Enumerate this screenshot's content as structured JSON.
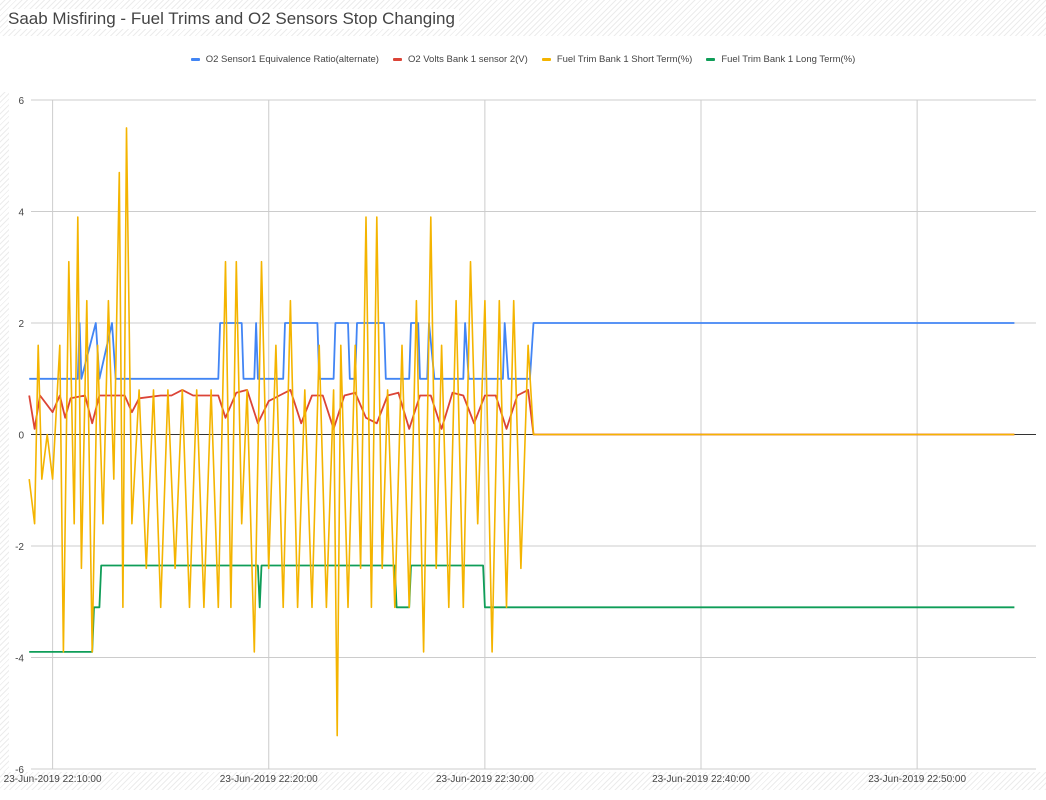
{
  "chart_data": {
    "type": "line",
    "title": "Saab Misfiring - Fuel Trims and O2 Sensors Stop Changing",
    "xlabel": "",
    "ylabel": "",
    "legend_position": "top",
    "grid": true,
    "xlim": [
      "23-Jun-2019 22:09:00",
      "23-Jun-2019 22:55:30"
    ],
    "ylim": [
      -6,
      6
    ],
    "yticks": [
      "6",
      "4",
      "2",
      "0",
      "-2",
      "-4",
      "-6"
    ],
    "xticks": [
      "23-Jun-2019 22:10:00",
      "23-Jun-2019 22:20:00",
      "23-Jun-2019 22:30:00",
      "23-Jun-2019 22:40:00",
      "23-Jun-2019 22:50:00"
    ],
    "series": [
      {
        "name": "O2 Sensor1 Equivalence Ratio(alternate)",
        "color": "#4285f4",
        "points": [
          [
            "22:08:55",
            1.0
          ],
          [
            "22:11:10",
            1.0
          ],
          [
            "22:11:15",
            2.0
          ],
          [
            "22:11:20",
            1.0
          ],
          [
            "22:12:00",
            2.0
          ],
          [
            "22:12:10",
            1.0
          ],
          [
            "22:12:45",
            2.0
          ],
          [
            "22:12:55",
            1.0
          ],
          [
            "22:13:10",
            1.0
          ],
          [
            "22:17:40",
            1.0
          ],
          [
            "22:17:45",
            2.0
          ],
          [
            "22:18:45",
            2.0
          ],
          [
            "22:18:50",
            1.0
          ],
          [
            "22:19:20",
            1.0
          ],
          [
            "22:19:25",
            2.0
          ],
          [
            "22:19:30",
            1.0
          ],
          [
            "22:20:40",
            1.0
          ],
          [
            "22:20:45",
            2.0
          ],
          [
            "22:22:15",
            2.0
          ],
          [
            "22:22:20",
            1.0
          ],
          [
            "22:23:00",
            1.0
          ],
          [
            "22:23:05",
            2.0
          ],
          [
            "22:23:40",
            2.0
          ],
          [
            "22:23:45",
            1.0
          ],
          [
            "22:24:00",
            1.0
          ],
          [
            "22:24:05",
            2.0
          ],
          [
            "22:25:20",
            2.0
          ],
          [
            "22:25:25",
            1.0
          ],
          [
            "22:26:30",
            1.0
          ],
          [
            "22:26:35",
            2.0
          ],
          [
            "22:26:55",
            2.0
          ],
          [
            "22:27:00",
            1.0
          ],
          [
            "22:27:20",
            1.0
          ],
          [
            "22:27:25",
            2.0
          ],
          [
            "22:27:40",
            1.0
          ],
          [
            "22:29:00",
            1.0
          ],
          [
            "22:29:05",
            2.0
          ],
          [
            "22:29:15",
            1.0
          ],
          [
            "22:30:50",
            1.0
          ],
          [
            "22:30:55",
            2.0
          ],
          [
            "22:31:05",
            1.0
          ],
          [
            "22:32:05",
            1.0
          ],
          [
            "22:32:15",
            2.0
          ],
          [
            "22:35:00",
            2.0
          ],
          [
            "22:40:00",
            2.0
          ],
          [
            "22:45:00",
            2.0
          ],
          [
            "22:50:00",
            2.0
          ],
          [
            "22:54:30",
            2.0
          ]
        ]
      },
      {
        "name": "O2 Volts Bank 1 sensor 2(V)",
        "color": "#db4437",
        "points": [
          [
            "22:08:55",
            0.7
          ],
          [
            "22:09:10",
            0.1
          ],
          [
            "22:09:25",
            0.7
          ],
          [
            "22:10:00",
            0.4
          ],
          [
            "22:10:20",
            0.7
          ],
          [
            "22:10:35",
            0.3
          ],
          [
            "22:10:50",
            0.65
          ],
          [
            "22:11:30",
            0.7
          ],
          [
            "22:11:50",
            0.2
          ],
          [
            "22:12:10",
            0.7
          ],
          [
            "22:12:50",
            0.7
          ],
          [
            "22:13:20",
            0.7
          ],
          [
            "22:13:40",
            0.4
          ],
          [
            "22:14:00",
            0.65
          ],
          [
            "22:15:00",
            0.7
          ],
          [
            "22:15:30",
            0.7
          ],
          [
            "22:16:00",
            0.8
          ],
          [
            "22:16:30",
            0.7
          ],
          [
            "22:17:00",
            0.7
          ],
          [
            "22:17:40",
            0.7
          ],
          [
            "22:18:00",
            0.3
          ],
          [
            "22:18:30",
            0.75
          ],
          [
            "22:19:00",
            0.8
          ],
          [
            "22:19:30",
            0.2
          ],
          [
            "22:20:00",
            0.6
          ],
          [
            "22:20:30",
            0.7
          ],
          [
            "22:21:00",
            0.8
          ],
          [
            "22:21:30",
            0.2
          ],
          [
            "22:22:00",
            0.7
          ],
          [
            "22:22:30",
            0.7
          ],
          [
            "22:23:00",
            0.1
          ],
          [
            "22:23:30",
            0.7
          ],
          [
            "22:24:00",
            0.75
          ],
          [
            "22:24:30",
            0.3
          ],
          [
            "22:25:00",
            0.2
          ],
          [
            "22:25:30",
            0.7
          ],
          [
            "22:26:00",
            0.75
          ],
          [
            "22:26:30",
            0.1
          ],
          [
            "22:27:00",
            0.7
          ],
          [
            "22:27:30",
            0.7
          ],
          [
            "22:28:00",
            0.1
          ],
          [
            "22:28:30",
            0.75
          ],
          [
            "22:29:00",
            0.7
          ],
          [
            "22:29:30",
            0.2
          ],
          [
            "22:30:00",
            0.7
          ],
          [
            "22:30:30",
            0.7
          ],
          [
            "22:31:00",
            0.1
          ],
          [
            "22:31:30",
            0.7
          ],
          [
            "22:32:00",
            0.8
          ],
          [
            "22:32:15",
            0.0
          ],
          [
            "22:54:30",
            0.0
          ]
        ]
      },
      {
        "name": "Fuel Trim Bank 1 Short Term(%)",
        "color": "#f4b400",
        "points": [
          [
            "22:08:55",
            -0.8
          ],
          [
            "22:09:10",
            -1.6
          ],
          [
            "22:09:20",
            1.6
          ],
          [
            "22:09:30",
            -0.8
          ],
          [
            "22:09:45",
            0.0
          ],
          [
            "22:10:00",
            -0.8
          ],
          [
            "22:10:20",
            1.6
          ],
          [
            "22:10:30",
            -3.9
          ],
          [
            "22:10:45",
            3.1
          ],
          [
            "22:11:00",
            -1.6
          ],
          [
            "22:11:10",
            3.9
          ],
          [
            "22:11:20",
            -2.4
          ],
          [
            "22:11:35",
            2.4
          ],
          [
            "22:11:50",
            -3.9
          ],
          [
            "22:12:05",
            1.6
          ],
          [
            "22:12:20",
            -1.6
          ],
          [
            "22:12:35",
            2.4
          ],
          [
            "22:12:50",
            -0.8
          ],
          [
            "22:13:05",
            4.7
          ],
          [
            "22:13:15",
            -3.1
          ],
          [
            "22:13:25",
            5.5
          ],
          [
            "22:13:40",
            -1.6
          ],
          [
            "22:14:00",
            0.8
          ],
          [
            "22:14:20",
            -2.4
          ],
          [
            "22:14:40",
            0.8
          ],
          [
            "22:15:00",
            -3.1
          ],
          [
            "22:15:20",
            0.8
          ],
          [
            "22:15:40",
            -2.4
          ],
          [
            "22:16:00",
            0.8
          ],
          [
            "22:16:20",
            -3.1
          ],
          [
            "22:16:40",
            0.8
          ],
          [
            "22:17:00",
            -3.1
          ],
          [
            "22:17:20",
            0.8
          ],
          [
            "22:17:40",
            -3.1
          ],
          [
            "22:18:00",
            3.1
          ],
          [
            "22:18:15",
            -3.1
          ],
          [
            "22:18:30",
            3.1
          ],
          [
            "22:18:45",
            -1.6
          ],
          [
            "22:19:00",
            0.8
          ],
          [
            "22:19:20",
            -3.9
          ],
          [
            "22:19:40",
            3.1
          ],
          [
            "22:20:00",
            -2.4
          ],
          [
            "22:20:20",
            1.6
          ],
          [
            "22:20:40",
            -3.1
          ],
          [
            "22:21:00",
            2.4
          ],
          [
            "22:21:20",
            -3.1
          ],
          [
            "22:21:40",
            0.8
          ],
          [
            "22:22:00",
            -3.1
          ],
          [
            "22:22:20",
            1.6
          ],
          [
            "22:22:40",
            -3.1
          ],
          [
            "22:23:00",
            0.8
          ],
          [
            "22:23:10",
            -5.4
          ],
          [
            "22:23:20",
            1.6
          ],
          [
            "22:23:40",
            -3.1
          ],
          [
            "22:24:00",
            1.6
          ],
          [
            "22:24:15",
            -2.4
          ],
          [
            "22:24:30",
            3.9
          ],
          [
            "22:24:45",
            -3.1
          ],
          [
            "22:25:00",
            3.9
          ],
          [
            "22:25:15",
            -2.4
          ],
          [
            "22:25:30",
            0.8
          ],
          [
            "22:25:50",
            -3.1
          ],
          [
            "22:26:10",
            1.6
          ],
          [
            "22:26:30",
            -3.1
          ],
          [
            "22:26:50",
            2.4
          ],
          [
            "22:27:10",
            -3.9
          ],
          [
            "22:27:30",
            3.9
          ],
          [
            "22:27:45",
            -2.4
          ],
          [
            "22:28:00",
            1.6
          ],
          [
            "22:28:20",
            -3.1
          ],
          [
            "22:28:40",
            2.4
          ],
          [
            "22:29:00",
            -3.1
          ],
          [
            "22:29:20",
            3.1
          ],
          [
            "22:29:40",
            -1.6
          ],
          [
            "22:30:00",
            2.4
          ],
          [
            "22:30:20",
            -3.9
          ],
          [
            "22:30:40",
            2.4
          ],
          [
            "22:31:00",
            -3.1
          ],
          [
            "22:31:20",
            2.4
          ],
          [
            "22:31:40",
            -2.4
          ],
          [
            "22:32:00",
            1.6
          ],
          [
            "22:32:15",
            0.0
          ],
          [
            "22:54:30",
            0.0
          ]
        ]
      },
      {
        "name": "Fuel Trim Bank 1 Long Term(%)",
        "color": "#0f9d58",
        "points": [
          [
            "22:08:55",
            -3.9
          ],
          [
            "22:11:50",
            -3.9
          ],
          [
            "22:11:55",
            -3.1
          ],
          [
            "22:12:10",
            -3.1
          ],
          [
            "22:12:15",
            -2.35
          ],
          [
            "22:19:30",
            -2.35
          ],
          [
            "22:19:35",
            -3.1
          ],
          [
            "22:19:40",
            -2.35
          ],
          [
            "22:25:50",
            -2.35
          ],
          [
            "22:25:55",
            -3.1
          ],
          [
            "22:26:30",
            -3.1
          ],
          [
            "22:26:35",
            -2.35
          ],
          [
            "22:29:55",
            -2.35
          ],
          [
            "22:30:00",
            -3.1
          ],
          [
            "22:54:30",
            -3.1
          ]
        ]
      }
    ]
  }
}
